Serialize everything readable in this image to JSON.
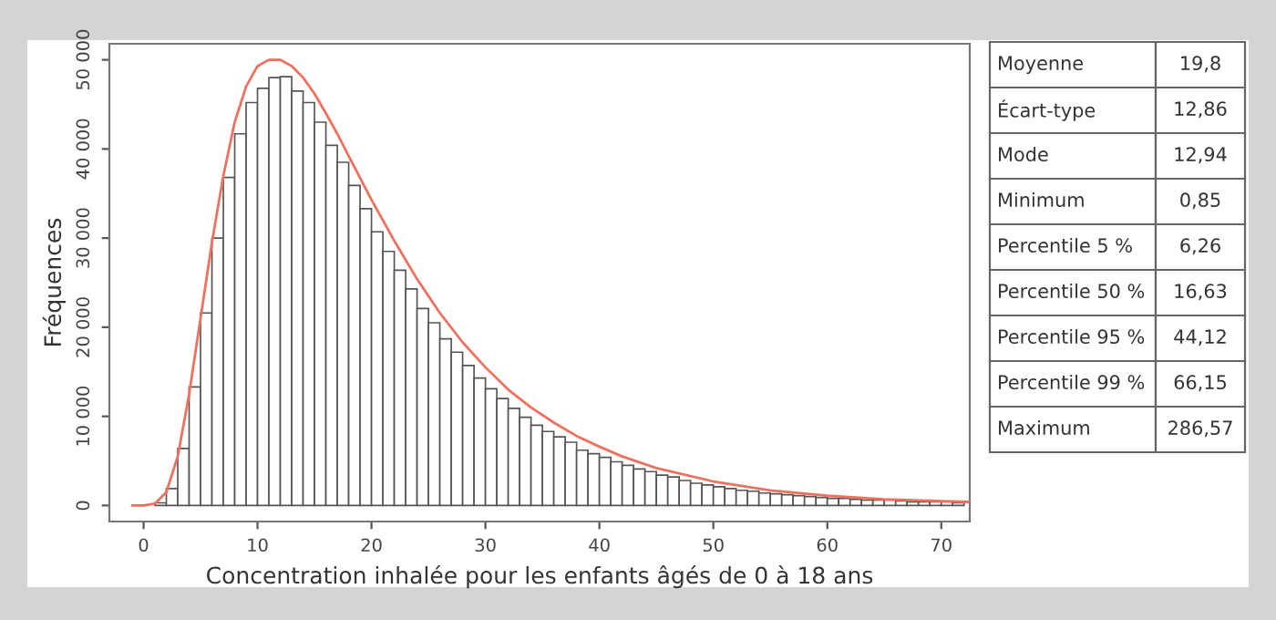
{
  "chart_data": {
    "type": "histogram",
    "xlabel": "Concentration inhalée pour les enfants âgés de 0 à 18 ans",
    "ylabel": "Fréquences",
    "bins": [
      1,
      2,
      3,
      4,
      5,
      6,
      7,
      8,
      9,
      10,
      11,
      12,
      13,
      14,
      15,
      16,
      17,
      18,
      19,
      20,
      21,
      22,
      23,
      24,
      25,
      26,
      27,
      28,
      29,
      30,
      31,
      32,
      33,
      34,
      35,
      36,
      37,
      38,
      39,
      40,
      41,
      42,
      43,
      44,
      45,
      46,
      47,
      48,
      49,
      50,
      51,
      52,
      53,
      54,
      55,
      56,
      57,
      58,
      59,
      60,
      61,
      62,
      63,
      64,
      65,
      66,
      67,
      68,
      69,
      70,
      71,
      72
    ],
    "values": [
      300,
      1900,
      6400,
      13300,
      21600,
      30000,
      36800,
      41700,
      45200,
      46800,
      48000,
      48100,
      46500,
      45200,
      43000,
      40400,
      38500,
      35900,
      33300,
      30700,
      28500,
      26400,
      24300,
      22100,
      20500,
      18700,
      17200,
      15700,
      14300,
      13100,
      12000,
      10900,
      9900,
      9000,
      8300,
      7700,
      7100,
      6200,
      5800,
      5400,
      4900,
      4500,
      4100,
      3800,
      3400,
      3200,
      2800,
      2500,
      2300,
      2100,
      1900,
      1700,
      1600,
      1400,
      1300,
      1200,
      1100,
      1000,
      900,
      800,
      800,
      700,
      600,
      600,
      600,
      500,
      400,
      400,
      400,
      400,
      300
    ],
    "color": "#ffffff",
    "series": [
      {
        "type": "line",
        "color": "#f07060",
        "x": [
          -1,
          0,
          1,
          2,
          3,
          4,
          5,
          6,
          7,
          8,
          9,
          10,
          11,
          12,
          13,
          14,
          15,
          16,
          17,
          18,
          20,
          22,
          24,
          26,
          28,
          30,
          32,
          34,
          36,
          38,
          40,
          42,
          45,
          50,
          55,
          60,
          65,
          70,
          72.5
        ],
        "values": [
          0,
          0,
          200,
          1500,
          5500,
          12500,
          21000,
          29500,
          37000,
          43000,
          47000,
          49300,
          50000,
          50000,
          49300,
          48000,
          46200,
          44000,
          41700,
          39200,
          34300,
          29700,
          25400,
          21600,
          18300,
          15500,
          13000,
          11000,
          9300,
          7800,
          6600,
          5500,
          4200,
          2700,
          1700,
          1100,
          700,
          500,
          400
        ]
      }
    ],
    "xlim": [
      -3,
      72.5
    ],
    "xticks": [
      0,
      10,
      20,
      30,
      40,
      50,
      60,
      70
    ],
    "ylim": [
      -1800,
      51800
    ],
    "yticks": [
      {
        "value": 0,
        "label": "0"
      },
      {
        "value": 10000,
        "label": "10 000"
      },
      {
        "value": 20000,
        "label": "20 000"
      },
      {
        "value": 30000,
        "label": "30 000"
      },
      {
        "value": 40000,
        "label": "40 000"
      },
      {
        "value": 50000,
        "label": "50 000"
      }
    ],
    "grid": false,
    "legend": false,
    "annotations": [
      "Moyenne",
      "19,8",
      "Écart-type",
      "12,86",
      "Mode",
      "12,94",
      "Minimum",
      "0,85",
      "Percentile 5 %",
      "6,26",
      "Percentile 50 %",
      "16,63",
      "Percentile 95 %",
      "44,12",
      "Percentile 99 %",
      "66,15",
      "Maximum",
      "286,57"
    ]
  }
}
